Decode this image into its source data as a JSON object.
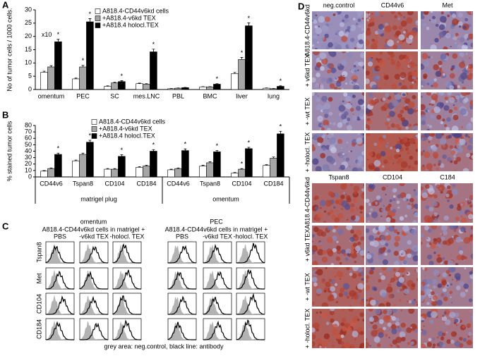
{
  "chart_data": [
    {
      "type": "bar",
      "panel": "A",
      "ylabel": "No of tumor cells / 1000 cells.",
      "categories": [
        "omentum",
        "PEC",
        "SC",
        "mes.LNC",
        "PBL",
        "BMC",
        "liver",
        "lung"
      ],
      "ylim": [
        0,
        30
      ],
      "yticks": [
        0,
        5,
        10,
        15,
        20,
        25,
        30
      ],
      "grid": false,
      "annotation": "x10",
      "series": [
        {
          "name": "A818.4-CD44v6kd cells",
          "color": "#ffffff",
          "values": [
            6.5,
            4,
            1.2,
            2.2,
            0.3,
            1,
            6,
            0.5
          ],
          "errors": [
            0.4,
            0.3,
            0.2,
            0.2,
            0.1,
            0.1,
            0.4,
            0.1
          ],
          "stars": [
            null,
            null,
            null,
            null,
            null,
            null,
            null,
            null
          ]
        },
        {
          "name": "+A818.4-v6kd TEX",
          "color": "#a6a6a6",
          "values": [
            8.5,
            8.5,
            2.5,
            2,
            0.5,
            1,
            11.3,
            0.3
          ],
          "errors": [
            0.5,
            0.6,
            0.2,
            0.2,
            0.1,
            0.1,
            0.8,
            0.1
          ],
          "stars": [
            null,
            "*",
            null,
            null,
            null,
            null,
            "*",
            null
          ]
        },
        {
          "name": "+A818.4 holocl.TEX",
          "color": "#000000",
          "values": [
            18,
            25.5,
            3,
            14.2,
            0.7,
            2,
            24,
            1.2
          ],
          "errors": [
            0.9,
            1.2,
            0.3,
            1,
            0.1,
            0.2,
            1.1,
            0.2
          ],
          "stars": [
            "*",
            "*",
            "*",
            "*",
            null,
            "*",
            "*",
            "*"
          ]
        }
      ]
    },
    {
      "type": "bar",
      "panel": "B",
      "ylabel": "% stained tumor cells",
      "categories": [
        "CD44v6",
        "Tspan8",
        "CD104",
        "CD184",
        "CD44v6",
        "Tspan8",
        "CD104",
        "CD184"
      ],
      "groups": [
        "matrigel plug",
        "omentum"
      ],
      "ylim": [
        0,
        80
      ],
      "yticks": [
        0,
        10,
        20,
        30,
        40,
        50,
        60,
        70,
        80
      ],
      "grid": false,
      "series": [
        {
          "name": "A818.4-CD44v6kd cells",
          "color": "#ffffff",
          "values": [
            9,
            25,
            12,
            15,
            11,
            17,
            6,
            18
          ],
          "errors": [
            0.8,
            1.2,
            1,
            1,
            1,
            1,
            0.8,
            1
          ],
          "stars": [
            null,
            null,
            null,
            null,
            null,
            null,
            null,
            null
          ]
        },
        {
          "name": "+A818.4-v6kd TEX",
          "color": "#a6a6a6",
          "values": [
            13,
            35,
            12,
            17,
            13,
            22,
            12,
            29
          ],
          "errors": [
            1,
            2,
            1,
            1.2,
            1,
            1.5,
            1,
            2
          ],
          "stars": [
            null,
            null,
            null,
            null,
            null,
            null,
            "*",
            null
          ]
        },
        {
          "name": "+A818.4 holocl.TEX",
          "color": "#000000",
          "values": [
            35,
            54,
            32,
            40,
            41,
            39,
            44,
            67
          ],
          "errors": [
            2,
            3,
            2.5,
            2.5,
            2.5,
            2,
            2,
            4
          ],
          "stars": [
            "*",
            "*",
            "*",
            "*",
            "*",
            "*",
            "*",
            "*"
          ]
        }
      ]
    }
  ],
  "panel_c": {
    "panel": "C",
    "column_groups": [
      {
        "title": "omentum",
        "subtitle": "A818.4-CD44v6kd  cells in matrigel +",
        "columns": [
          "PBS",
          "-v6kd TEX",
          "-holocl. TEX"
        ]
      },
      {
        "title": "PEC",
        "subtitle": "A818.4-CD44v6kd  cells in matrigel +",
        "columns": [
          "PBS",
          "-v6kd TEX",
          "-holocl. TEX"
        ]
      }
    ],
    "rows": [
      "Tspan8",
      "Met",
      "CD104",
      "CD184"
    ],
    "caption": "grey area: neg.control, black line: antibody"
  },
  "panel_d": {
    "panel": "D",
    "blocks": [
      {
        "columns": [
          "neg.control",
          "CD44v6",
          "Met"
        ],
        "rows": [
          "A818.4-CD44v6kd",
          "+ v6kd TEX",
          "+ -wt TEX",
          "+ -holocl. TEX"
        ]
      },
      {
        "columns": [
          "Tspan8",
          "CD104",
          "C184"
        ],
        "rows": [
          "A818.4-CD44v6kd",
          "+ v6kd TEX",
          "+ -wt TEX",
          "+ -holocl. TEX"
        ]
      }
    ]
  }
}
